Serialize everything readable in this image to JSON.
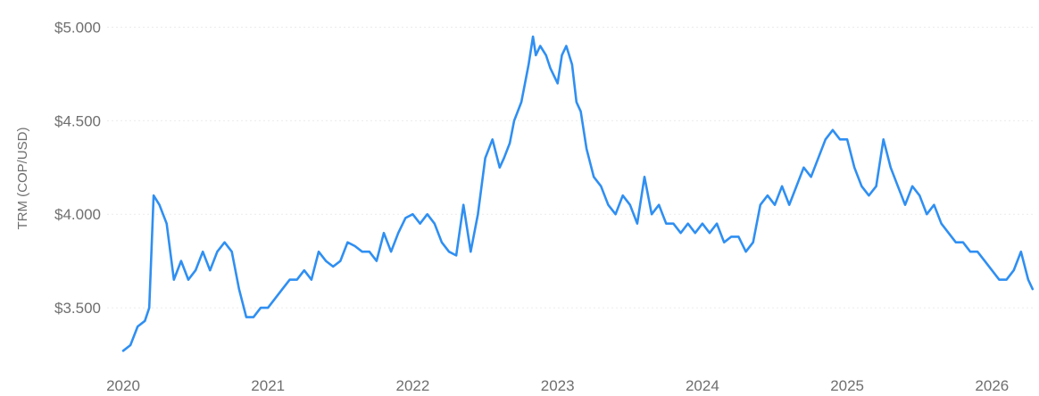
{
  "chart_data": {
    "type": "line",
    "title": "",
    "xlabel": "",
    "ylabel": "TRM (COP/USD)",
    "xlim": [
      2020.0,
      2026.3
    ],
    "ylim": [
      3200,
      5050
    ],
    "x_ticks": [
      2020,
      2021,
      2022,
      2023,
      2024,
      2025,
      2026
    ],
    "x_tick_labels": [
      "2020",
      "2021",
      "2022",
      "2023",
      "2024",
      "2025",
      "2026"
    ],
    "y_ticks": [
      3500,
      4000,
      4500,
      5000
    ],
    "y_tick_labels": [
      "$3.500",
      "$4.000",
      "$4.500",
      "$5.000"
    ],
    "grid": true,
    "color": "#2f8ff2",
    "series": [
      {
        "x": [
          2020.0,
          2020.05,
          2020.1,
          2020.15,
          2020.18,
          2020.21,
          2020.25,
          2020.3,
          2020.35,
          2020.4,
          2020.45,
          2020.5,
          2020.55,
          2020.6,
          2020.65,
          2020.7,
          2020.75,
          2020.8,
          2020.85,
          2020.9,
          2020.95,
          2021.0,
          2021.05,
          2021.1,
          2021.15,
          2021.2,
          2021.25,
          2021.3,
          2021.35,
          2021.4,
          2021.45,
          2021.5,
          2021.55,
          2021.6,
          2021.65,
          2021.7,
          2021.75,
          2021.8,
          2021.85,
          2021.9,
          2021.95,
          2022.0,
          2022.05,
          2022.1,
          2022.15,
          2022.2,
          2022.25,
          2022.3,
          2022.35,
          2022.4,
          2022.45,
          2022.5,
          2022.55,
          2022.6,
          2022.63,
          2022.67,
          2022.7,
          2022.75,
          2022.8,
          2022.83,
          2022.85,
          2022.88,
          2022.92,
          2022.95,
          2023.0,
          2023.03,
          2023.06,
          2023.1,
          2023.13,
          2023.16,
          2023.2,
          2023.25,
          2023.3,
          2023.35,
          2023.4,
          2023.45,
          2023.5,
          2023.55,
          2023.6,
          2023.65,
          2023.7,
          2023.75,
          2023.8,
          2023.85,
          2023.9,
          2023.95,
          2024.0,
          2024.05,
          2024.1,
          2024.15,
          2024.2,
          2024.25,
          2024.3,
          2024.35,
          2024.4,
          2024.45,
          2024.5,
          2024.55,
          2024.6,
          2024.65,
          2024.7,
          2024.75,
          2024.8,
          2024.85,
          2024.9,
          2024.95,
          2025.0,
          2025.05,
          2025.1,
          2025.15,
          2025.2,
          2025.25,
          2025.3,
          2025.35,
          2025.4,
          2025.45,
          2025.5,
          2025.55,
          2025.6,
          2025.65,
          2025.7,
          2025.75,
          2025.8,
          2025.85,
          2025.9,
          2025.95,
          2026.0,
          2026.05,
          2026.1,
          2026.15,
          2026.2,
          2026.25,
          2026.28
        ],
        "y": [
          3270,
          3300,
          3400,
          3430,
          3500,
          4100,
          4050,
          3950,
          3650,
          3750,
          3650,
          3700,
          3800,
          3700,
          3800,
          3850,
          3800,
          3600,
          3450,
          3450,
          3500,
          3500,
          3550,
          3600,
          3650,
          3650,
          3700,
          3650,
          3800,
          3750,
          3720,
          3750,
          3850,
          3830,
          3800,
          3800,
          3750,
          3900,
          3800,
          3900,
          3980,
          4000,
          3950,
          4000,
          3950,
          3850,
          3800,
          3780,
          4050,
          3800,
          4000,
          4300,
          4400,
          4250,
          4300,
          4380,
          4500,
          4600,
          4800,
          4950,
          4850,
          4900,
          4850,
          4780,
          4700,
          4850,
          4900,
          4800,
          4600,
          4550,
          4350,
          4200,
          4150,
          4050,
          4000,
          4100,
          4050,
          3950,
          4200,
          4000,
          4050,
          3950,
          3950,
          3900,
          3950,
          3900,
          3950,
          3900,
          3950,
          3850,
          3880,
          3880,
          3800,
          3850,
          4050,
          4100,
          4050,
          4150,
          4050,
          4150,
          4250,
          4200,
          4300,
          4400,
          4450,
          4400,
          4400,
          4250,
          4150,
          4100,
          4150,
          4400,
          4250,
          4150,
          4050,
          4150,
          4100,
          4000,
          4050,
          3950,
          3900,
          3850,
          3850,
          3800,
          3800,
          3750,
          3700,
          3650,
          3650,
          3700,
          3800,
          3650,
          3600
        ]
      }
    ]
  }
}
